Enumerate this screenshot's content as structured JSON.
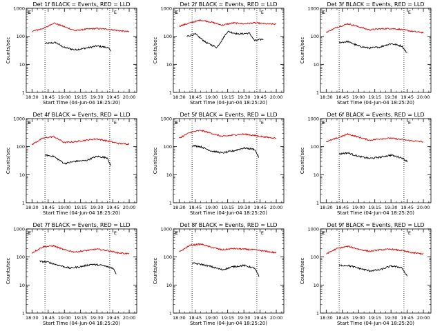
{
  "figure": {
    "start_time_label": "Start Time (04-Jun-04 18:25:20)",
    "x_tick_labels": [
      "18:30",
      "18:45",
      "19:00",
      "19:15",
      "19:30",
      "19:45",
      "20:00"
    ],
    "y_tick_labels": [
      "1",
      "10",
      "100",
      "1000"
    ],
    "ylabel": "Counts/sec",
    "flag_marks": [
      "E",
      "E"
    ],
    "colors": {
      "events": "#000000",
      "lld": "#dd0000"
    }
  },
  "chart_data": [
    {
      "type": "line",
      "title": "Det 1f BLACK = Events, RED = LLD",
      "xlabel": "Start Time (04-Jun-04 18:25:20)",
      "ylabel": "Counts/sec",
      "x_ticks": [
        "18:30",
        "18:45",
        "19:00",
        "19:15",
        "19:30",
        "19:45",
        "20:00"
      ],
      "ylim": [
        1,
        1000
      ],
      "yscale": "log",
      "markers": [
        "18:42",
        "19:42"
      ],
      "series": [
        {
          "name": "Events",
          "color": "black",
          "x": [
            "18:42",
            "18:52",
            "19:00",
            "19:10",
            "19:20",
            "19:30",
            "19:40",
            "19:43"
          ],
          "values": [
            55,
            60,
            40,
            33,
            38,
            45,
            40,
            30
          ]
        },
        {
          "name": "LLD",
          "color": "red",
          "x": [
            "18:30",
            "18:42",
            "18:50",
            "19:00",
            "19:10",
            "19:20",
            "19:30",
            "19:40",
            "19:50",
            "20:00"
          ],
          "values": [
            150,
            200,
            300,
            220,
            160,
            180,
            190,
            180,
            160,
            145
          ]
        }
      ]
    },
    {
      "type": "line",
      "title": "Det 2f BLACK = Events, RED = LLD",
      "xlabel": "Start Time (04-Jun-04 18:25:20)",
      "ylabel": "Counts/sec",
      "x_ticks": [
        "18:30",
        "18:45",
        "19:00",
        "19:15",
        "19:30",
        "19:45",
        "20:00"
      ],
      "ylim": [
        1,
        1000
      ],
      "yscale": "log",
      "markers": [
        "18:42",
        "19:42"
      ],
      "series": [
        {
          "name": "Events",
          "color": "black",
          "x": [
            "18:37",
            "18:45",
            "18:55",
            "19:05",
            "19:15",
            "19:25",
            "19:35",
            "19:40",
            "19:48"
          ],
          "values": [
            100,
            120,
            60,
            40,
            150,
            120,
            130,
            70,
            80
          ]
        },
        {
          "name": "LLD",
          "color": "red",
          "x": [
            "18:30",
            "18:40",
            "18:50",
            "19:00",
            "19:10",
            "19:20",
            "19:30",
            "19:40",
            "19:50",
            "20:00"
          ],
          "values": [
            230,
            300,
            380,
            320,
            250,
            300,
            280,
            300,
            280,
            270
          ]
        }
      ]
    },
    {
      "type": "line",
      "title": "Det 3f BLACK = Events, RED = LLD",
      "xlabel": "Start Time (04-Jun-04 18:25:20)",
      "ylabel": "Counts/sec",
      "x_ticks": [
        "18:30",
        "18:45",
        "19:00",
        "19:15",
        "19:30",
        "19:45",
        "20:00"
      ],
      "ylim": [
        1,
        1000
      ],
      "yscale": "log",
      "markers": [
        "18:42",
        "19:42"
      ],
      "series": [
        {
          "name": "Events",
          "color": "black",
          "x": [
            "18:42",
            "18:50",
            "19:00",
            "19:10",
            "19:20",
            "19:30",
            "19:40",
            "19:45"
          ],
          "values": [
            60,
            65,
            45,
            38,
            42,
            55,
            45,
            25
          ]
        },
        {
          "name": "LLD",
          "color": "red",
          "x": [
            "18:30",
            "18:40",
            "18:50",
            "19:00",
            "19:10",
            "19:20",
            "19:30",
            "19:40",
            "19:50",
            "20:00"
          ],
          "values": [
            140,
            210,
            280,
            220,
            170,
            185,
            190,
            175,
            150,
            135
          ]
        }
      ]
    },
    {
      "type": "line",
      "title": "Det 4f BLACK = Events, RED = LLD",
      "xlabel": "Start Time (04-Jun-04 18:25:20)",
      "ylabel": "Counts/sec",
      "x_ticks": [
        "18:30",
        "18:45",
        "19:00",
        "19:15",
        "19:30",
        "19:45",
        "20:00"
      ],
      "ylim": [
        1,
        1000
      ],
      "yscale": "log",
      "markers": [
        "18:42",
        "19:42"
      ],
      "series": [
        {
          "name": "Events",
          "color": "black",
          "x": [
            "18:42",
            "18:50",
            "19:00",
            "19:10",
            "19:20",
            "19:30",
            "19:40",
            "19:43"
          ],
          "values": [
            50,
            45,
            25,
            30,
            32,
            45,
            40,
            20
          ]
        },
        {
          "name": "LLD",
          "color": "red",
          "x": [
            "18:30",
            "18:40",
            "18:50",
            "19:00",
            "19:10",
            "19:20",
            "19:30",
            "19:40",
            "19:50",
            "20:00"
          ],
          "values": [
            120,
            200,
            230,
            140,
            150,
            170,
            190,
            160,
            130,
            125
          ]
        }
      ]
    },
    {
      "type": "line",
      "title": "Det 5f BLACK = Events, RED = LLD",
      "xlabel": "Start Time (04-Jun-04 18:25:20)",
      "ylabel": "Counts/sec",
      "x_ticks": [
        "18:30",
        "18:45",
        "19:00",
        "19:15",
        "19:30",
        "19:45",
        "20:00"
      ],
      "ylim": [
        1,
        1000
      ],
      "yscale": "log",
      "markers": [
        "18:42",
        "19:42"
      ],
      "series": [
        {
          "name": "Events",
          "color": "black",
          "x": [
            "18:42",
            "18:50",
            "19:00",
            "19:10",
            "19:20",
            "19:30",
            "19:40",
            "19:44"
          ],
          "values": [
            110,
            100,
            70,
            60,
            70,
            90,
            80,
            40
          ]
        },
        {
          "name": "LLD",
          "color": "red",
          "x": [
            "18:30",
            "18:40",
            "18:50",
            "19:00",
            "19:10",
            "19:20",
            "19:30",
            "19:40",
            "19:50",
            "20:00"
          ],
          "values": [
            200,
            320,
            380,
            300,
            230,
            260,
            280,
            250,
            220,
            200
          ]
        }
      ]
    },
    {
      "type": "line",
      "title": "Det 6f BLACK = Events, RED = LLD",
      "xlabel": "Start Time (04-Jun-04 18:25:20)",
      "ylabel": "Counts/sec",
      "x_ticks": [
        "18:30",
        "18:45",
        "19:00",
        "19:15",
        "19:30",
        "19:45",
        "20:00"
      ],
      "ylim": [
        1,
        1000
      ],
      "yscale": "log",
      "markers": [
        "18:42",
        "19:42"
      ],
      "series": [
        {
          "name": "Events",
          "color": "black",
          "x": [
            "18:42",
            "18:50",
            "19:00",
            "19:10",
            "19:20",
            "19:30",
            "19:40",
            "19:45"
          ],
          "values": [
            55,
            60,
            45,
            38,
            42,
            50,
            40,
            30
          ]
        },
        {
          "name": "LLD",
          "color": "red",
          "x": [
            "18:30",
            "18:40",
            "18:50",
            "19:00",
            "19:10",
            "19:20",
            "19:30",
            "19:40",
            "19:50",
            "20:00"
          ],
          "values": [
            150,
            200,
            280,
            220,
            170,
            190,
            200,
            180,
            160,
            150
          ]
        }
      ]
    },
    {
      "type": "line",
      "title": "Det 7f BLACK = Events, RED = LLD",
      "xlabel": "Start Time (04-Jun-04 18:25:20)",
      "ylabel": "Counts/sec",
      "x_ticks": [
        "18:30",
        "18:45",
        "19:00",
        "19:15",
        "19:30",
        "19:45",
        "20:00"
      ],
      "ylim": [
        1,
        1000
      ],
      "yscale": "log",
      "markers": [
        "18:42",
        "19:42"
      ],
      "series": [
        {
          "name": "Events",
          "color": "black",
          "x": [
            "18:37",
            "18:45",
            "18:55",
            "19:05",
            "19:15",
            "19:25",
            "19:35",
            "19:45",
            "19:48"
          ],
          "values": [
            70,
            65,
            50,
            40,
            45,
            55,
            50,
            40,
            25
          ]
        },
        {
          "name": "LLD",
          "color": "red",
          "x": [
            "18:30",
            "18:40",
            "18:50",
            "19:00",
            "19:10",
            "19:20",
            "19:30",
            "19:40",
            "19:50",
            "20:00"
          ],
          "values": [
            140,
            230,
            250,
            180,
            150,
            170,
            190,
            170,
            140,
            130
          ]
        }
      ]
    },
    {
      "type": "line",
      "title": "Det 8f BLACK = Events, RED = LLD",
      "xlabel": "Start Time (04-Jun-04 18:25:20)",
      "ylabel": "Counts/sec",
      "x_ticks": [
        "18:30",
        "18:45",
        "19:00",
        "19:15",
        "19:30",
        "19:45",
        "20:00"
      ],
      "ylim": [
        1,
        1000
      ],
      "yscale": "log",
      "markers": [
        "18:42",
        "19:42"
      ],
      "series": [
        {
          "name": "Events",
          "color": "black",
          "x": [
            "18:42",
            "18:50",
            "19:00",
            "19:10",
            "19:20",
            "19:30",
            "19:40",
            "19:44"
          ],
          "values": [
            60,
            55,
            45,
            35,
            45,
            50,
            40,
            20
          ]
        },
        {
          "name": "LLD",
          "color": "red",
          "x": [
            "18:30",
            "18:40",
            "18:50",
            "19:00",
            "19:10",
            "19:20",
            "19:30",
            "19:40",
            "19:50",
            "20:00"
          ],
          "values": [
            150,
            260,
            290,
            220,
            180,
            200,
            190,
            180,
            160,
            140
          ]
        }
      ]
    },
    {
      "type": "line",
      "title": "Det 9f BLACK = Events, RED = LLD",
      "xlabel": "Start Time (04-Jun-04 18:25:20)",
      "ylabel": "Counts/sec",
      "x_ticks": [
        "18:30",
        "18:45",
        "19:00",
        "19:15",
        "19:30",
        "19:45",
        "20:00"
      ],
      "ylim": [
        1,
        1000
      ],
      "yscale": "log",
      "markers": [
        "18:42",
        "19:42"
      ],
      "series": [
        {
          "name": "Events",
          "color": "black",
          "x": [
            "18:42",
            "18:50",
            "19:00",
            "19:10",
            "19:20",
            "19:30",
            "19:40",
            "19:45"
          ],
          "values": [
            50,
            50,
            40,
            32,
            35,
            48,
            42,
            20
          ]
        },
        {
          "name": "LLD",
          "color": "red",
          "x": [
            "18:30",
            "18:40",
            "18:50",
            "19:00",
            "19:10",
            "19:20",
            "19:30",
            "19:40",
            "19:50",
            "20:00"
          ],
          "values": [
            130,
            200,
            240,
            190,
            160,
            180,
            190,
            170,
            140,
            130
          ]
        }
      ]
    }
  ]
}
